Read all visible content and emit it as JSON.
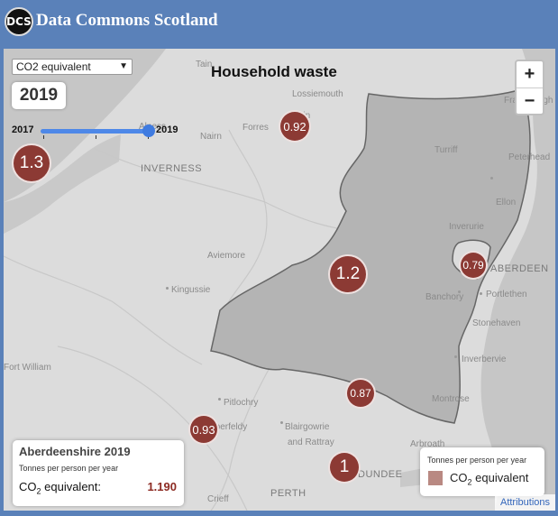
{
  "header": {
    "logo_text": "DCS",
    "app_title": "Data Commons Scotland"
  },
  "map": {
    "title": "Household waste",
    "measure_select": {
      "value": "CO2 equivalent"
    },
    "year": "2019",
    "slider": {
      "min_label": "2017",
      "max_label": "2019",
      "value": 2019,
      "min": 2017,
      "max": 2019
    },
    "zoom": {
      "in_label": "+",
      "out_label": "−"
    },
    "places": [
      "Tain",
      "Alness",
      "Lossiemouth",
      "Elgin",
      "Fraserburgh",
      "Peterhead",
      "Forres",
      "Nairn",
      "INVERNESS",
      "Turriff",
      "Ellon",
      "Inverurie",
      "Aviemore",
      "ABERDEEN",
      "Kingussie",
      "Banchory",
      "Portlethen",
      "Stonehaven",
      "Fort William",
      "Inverbervie",
      "Pitlochry",
      "Montrose",
      "Aberfeldy",
      "Blairgowrie",
      "and Rattray",
      "Arbroath",
      "DUNDEE",
      "Crieff",
      "PERTH"
    ],
    "bubbles": [
      {
        "value": "0.92"
      },
      {
        "value": "1.3"
      },
      {
        "value": "1.2"
      },
      {
        "value": "0.79"
      },
      {
        "value": "0.87"
      },
      {
        "value": "0.93"
      },
      {
        "value": "1"
      }
    ],
    "colors": {
      "selected_region": "#b4b4b4",
      "bubble": "#8c3a34",
      "legend_swatch": "#b98982",
      "background": "#dcdcdc",
      "water": "#c6c6c6"
    }
  },
  "info_panel": {
    "title": "Aberdeenshire 2019",
    "unit": "Tonnes per person per year",
    "label_main": "CO",
    "label_sub": "2",
    "label_rest": " equivalent:",
    "value": "1.190"
  },
  "legend": {
    "unit": "Tonnes per person per year",
    "label_main": "CO",
    "label_sub": "2",
    "label_rest": " equivalent"
  },
  "attributions": "Attributions"
}
